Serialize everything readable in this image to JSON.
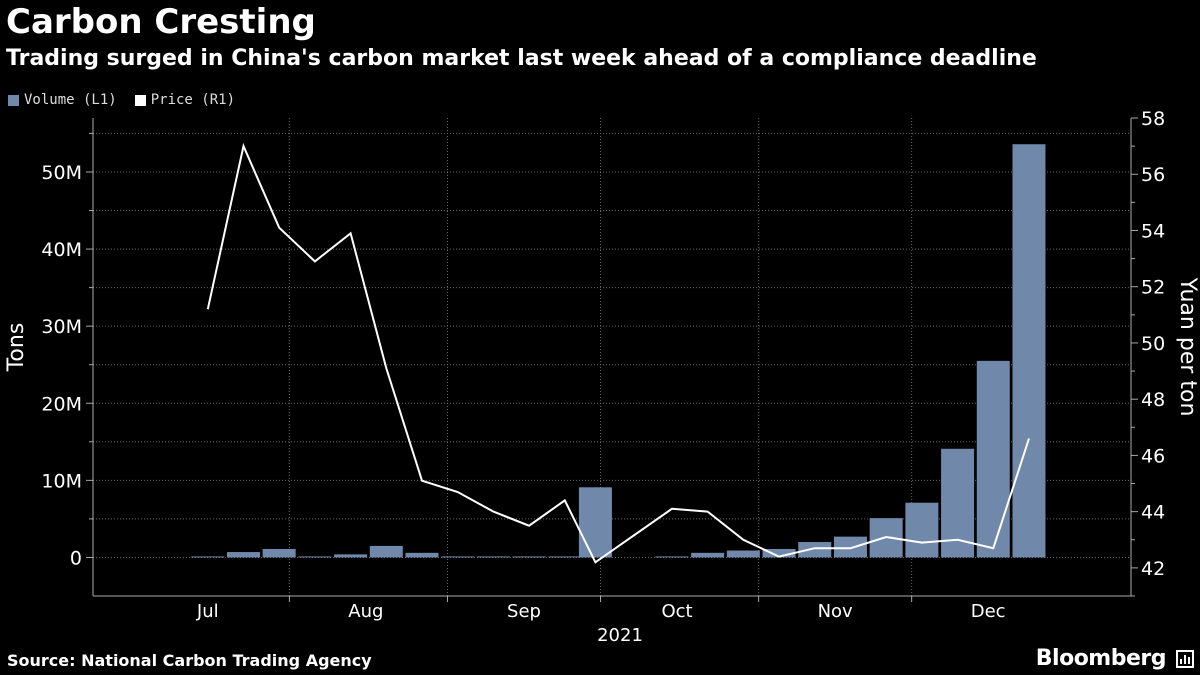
{
  "header": {
    "title": "Carbon Cresting",
    "subtitle": "Trading surged in China's carbon market last week ahead of a compliance deadline"
  },
  "legend": {
    "volume_label": "Volume (L1)",
    "price_label": "Price (R1)"
  },
  "footer": {
    "source": "Source: National Carbon Trading Agency",
    "brand": "Bloomberg",
    "brand_icon": "bloomberg-chart-icon"
  },
  "colors": {
    "background": "#000000",
    "volume": "#7088aa",
    "price": "#ffffff",
    "grid": "#666666"
  },
  "chart_data": {
    "type": "bar",
    "title": "Carbon Cresting",
    "xlabel": "2021",
    "ylabel": "Tons",
    "y2label": "Yuan per ton",
    "ylim": [
      -5000000,
      57000000
    ],
    "y2lim": [
      41,
      58
    ],
    "yticks": [
      0,
      10000000,
      20000000,
      30000000,
      40000000,
      50000000
    ],
    "ytick_labels": [
      "0",
      "10M",
      "20M",
      "30M",
      "40M",
      "50M"
    ],
    "y2ticks": [
      42,
      44,
      46,
      48,
      50,
      52,
      54,
      56,
      58
    ],
    "month_labels": [
      "Jul",
      "Aug",
      "Sep",
      "Oct",
      "Nov",
      "Dec"
    ],
    "grid": true,
    "legend_position": "top-left",
    "x": [
      "2021-07-16",
      "2021-07-23",
      "2021-07-30",
      "2021-08-06",
      "2021-08-13",
      "2021-08-20",
      "2021-08-27",
      "2021-09-03",
      "2021-09-10",
      "2021-09-17",
      "2021-09-24",
      "2021-09-30",
      "2021-10-15",
      "2021-10-22",
      "2021-10-29",
      "2021-11-05",
      "2021-11-12",
      "2021-11-19",
      "2021-11-26",
      "2021-12-03",
      "2021-12-10",
      "2021-12-17",
      "2021-12-24",
      "2021-12-31"
    ],
    "series": [
      {
        "name": "Volume (L1)",
        "type": "bar",
        "axis": "left",
        "values": [
          0,
          700000,
          1100000,
          100000,
          400000,
          1500000,
          600000,
          0,
          0,
          0,
          0,
          9100000,
          0,
          600000,
          900000,
          1100000,
          2000000,
          2700000,
          5100000,
          7100000,
          14100000,
          25500000,
          53600000,
          null
        ]
      },
      {
        "name": "Price (R1)",
        "type": "line",
        "axis": "right",
        "values": [
          51.2,
          57.0,
          54.1,
          52.9,
          53.9,
          49.1,
          45.1,
          44.7,
          44.0,
          43.5,
          44.4,
          42.2,
          44.1,
          44.0,
          43.0,
          42.4,
          42.7,
          42.7,
          43.1,
          42.9,
          43.0,
          42.7,
          46.6,
          null
        ]
      }
    ]
  }
}
